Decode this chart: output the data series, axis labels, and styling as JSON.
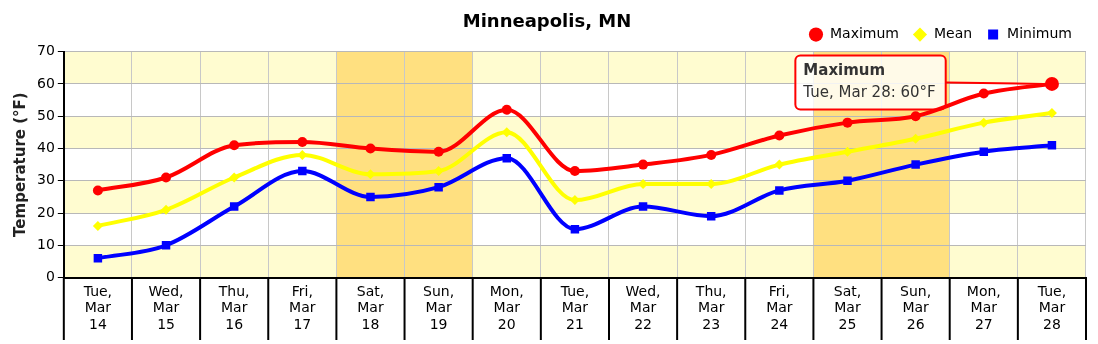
{
  "chart_data": {
    "type": "line",
    "title": "Minneapolis, MN",
    "ylabel": "Temperature (°F)",
    "categories": [
      "Tue, Mar 14",
      "Wed, Mar 15",
      "Thu, Mar 16",
      "Fri, Mar 17",
      "Sat, Mar 18",
      "Sun, Mar 19",
      "Mon, Mar 20",
      "Tue, Mar 21",
      "Wed, Mar 22",
      "Thu, Mar 23",
      "Fri, Mar 24",
      "Sat, Mar 25",
      "Sun, Mar 26",
      "Mon, Mar 27",
      "Tue, Mar 28"
    ],
    "series": [
      {
        "name": "Maximum",
        "color": "#ff0000",
        "marker": "circle",
        "values": [
          27,
          31,
          41,
          42,
          40,
          39,
          52,
          33,
          35,
          38,
          44,
          48,
          50,
          57,
          60
        ]
      },
      {
        "name": "Mean",
        "color": "#ffff00",
        "marker": "diamond",
        "values": [
          16,
          21,
          31,
          38,
          32,
          33,
          45,
          24,
          29,
          29,
          35,
          39,
          43,
          48,
          51
        ]
      },
      {
        "name": "Minimum",
        "color": "#0000ff",
        "marker": "square",
        "values": [
          6,
          10,
          22,
          33,
          25,
          28,
          37,
          15,
          22,
          19,
          27,
          30,
          35,
          39,
          41
        ]
      }
    ],
    "ylim": [
      0,
      70
    ],
    "yticks": [
      0,
      10,
      20,
      30,
      40,
      50,
      60,
      70
    ],
    "grid": true,
    "legend": "top right",
    "line_style": "solid",
    "bands": [
      {
        "axis": "x",
        "from": "Sat, Mar 18",
        "to": "Sun, Mar 19",
        "color": "#ffe080"
      },
      {
        "axis": "x",
        "from": "Sat, Mar 25",
        "to": "Sun, Mar 26",
        "color": "#ffe080"
      },
      {
        "axis": "y",
        "from": 0,
        "to": 10,
        "color": "#fffcd0"
      },
      {
        "axis": "y",
        "from": 20,
        "to": 30,
        "color": "#fffcd0"
      },
      {
        "axis": "y",
        "from": 40,
        "to": 50,
        "color": "#fffcd0"
      },
      {
        "axis": "y",
        "from": 60,
        "to": 70,
        "color": "#fffcd0"
      }
    ],
    "annotations": [
      {
        "text": "Maximum\nTue, Mar 28: 60°F",
        "x": "Tue, Mar 28",
        "y": 60
      }
    ]
  }
}
